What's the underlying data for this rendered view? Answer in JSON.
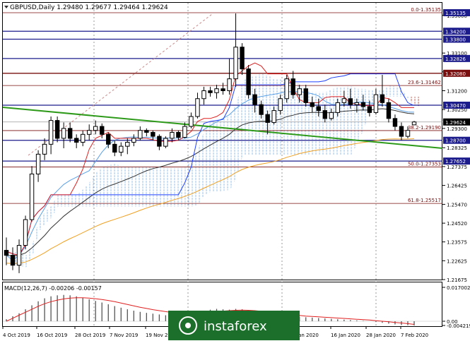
{
  "window": {
    "symbol_line": "GBPUSD,Daily  1.29480 1.29677 1.29464 1.29624"
  },
  "price_scale": {
    "ticks": [
      "1.35000",
      "1.33100",
      "1.32150",
      "1.31200",
      "1.30250",
      "1.29300",
      "1.28325",
      "1.27375",
      "1.26425",
      "1.25470",
      "1.24520",
      "1.23575",
      "1.22625",
      "1.21675"
    ]
  },
  "level_tags": [
    {
      "text": "1.35135",
      "price": 1.35135,
      "color": "#1c1c8c"
    },
    {
      "text": "1.34200",
      "price": 1.342,
      "color": "#1c1c8c"
    },
    {
      "text": "1.33800",
      "price": 1.338,
      "color": "#1c1c8c"
    },
    {
      "text": "1.32826",
      "price": 1.32826,
      "color": "#1c1c8c"
    },
    {
      "text": "1.32080",
      "price": 1.3208,
      "color": "#7a0f0f"
    },
    {
      "text": "1.30470",
      "price": 1.3047,
      "color": "#1c1c8c"
    },
    {
      "text": "1.29624",
      "price": 1.29624,
      "color": "#000000"
    },
    {
      "text": "1.28700",
      "price": 1.287,
      "color": "#1c1c8c"
    },
    {
      "text": "1.27652",
      "price": 1.27652,
      "color": "#1c1c8c"
    }
  ],
  "fib_labels": [
    {
      "text": "0.0-1.35135",
      "price": 1.35135
    },
    {
      "text": "23.6-1.31462",
      "price": 1.31462
    },
    {
      "text": "38.2-1.29190",
      "price": 1.2919
    },
    {
      "text": "50.0-1.27353",
      "price": 1.27353
    },
    {
      "text": "61.8-1.25517",
      "price": 1.25517
    }
  ],
  "macd": {
    "label": "MACD(12,26,7) -0.00206 -0.00157",
    "ticks": [
      "0.017002",
      "0.00",
      "-0.004219"
    ]
  },
  "time_axis": {
    "labels": [
      "4 Oct 2019",
      "16 Oct 2019",
      "28 Oct 2019",
      "7 Nov 2019",
      "19 Nov 20",
      "Jan 2020",
      "16 Jan 2020",
      "28 Jan 2020",
      "7 Feb 2020"
    ]
  },
  "watermark": "instaforex",
  "colors": {
    "resistance_blue": "#1c1c8c",
    "fib_red": "#7a0f0f",
    "trendline_green": "#2e9a1a",
    "tenkan_red": "#e02020",
    "kijun_blue": "#2040ff",
    "ma_black": "#333333",
    "ma_orange": "#f0a020",
    "ma_lightblue": "#5aa0e6",
    "watermark_green": "#1c6f2b"
  },
  "chart_data": {
    "type": "candlestick",
    "series_name": "GBPUSD",
    "timeframe": "Daily",
    "current_price": 1.29624,
    "ohlc_last": {
      "open": 1.2948,
      "high": 1.29677,
      "low": 1.29464,
      "close": 1.29624
    },
    "horizontal_levels": [
      1.342,
      1.338,
      1.32826,
      1.3208,
      1.3047,
      1.287,
      1.27652
    ],
    "fibonacci": [
      {
        "level": "0.0",
        "price": 1.35135
      },
      {
        "level": "23.6",
        "price": 1.31462
      },
      {
        "level": "38.2",
        "price": 1.2919
      },
      {
        "level": "50.0",
        "price": 1.27353
      },
      {
        "level": "61.8",
        "price": 1.25517
      }
    ],
    "candles": [
      {
        "o": 1.2315,
        "h": 1.238,
        "l": 1.224,
        "c": 1.229
      },
      {
        "o": 1.229,
        "h": 1.233,
        "l": 1.2215,
        "c": 1.224
      },
      {
        "o": 1.224,
        "h": 1.237,
        "l": 1.22,
        "c": 1.234
      },
      {
        "o": 1.234,
        "h": 1.249,
        "l": 1.232,
        "c": 1.247
      },
      {
        "o": 1.247,
        "h": 1.274,
        "l": 1.246,
        "c": 1.27
      },
      {
        "o": 1.27,
        "h": 1.282,
        "l": 1.266,
        "c": 1.28
      },
      {
        "o": 1.28,
        "h": 1.288,
        "l": 1.277,
        "c": 1.285
      },
      {
        "o": 1.285,
        "h": 1.299,
        "l": 1.28,
        "c": 1.297
      },
      {
        "o": 1.297,
        "h": 1.299,
        "l": 1.286,
        "c": 1.288
      },
      {
        "o": 1.288,
        "h": 1.296,
        "l": 1.283,
        "c": 1.293
      },
      {
        "o": 1.293,
        "h": 1.296,
        "l": 1.286,
        "c": 1.288
      },
      {
        "o": 1.288,
        "h": 1.29,
        "l": 1.283,
        "c": 1.286
      },
      {
        "o": 1.286,
        "h": 1.292,
        "l": 1.284,
        "c": 1.29
      },
      {
        "o": 1.29,
        "h": 1.295,
        "l": 1.287,
        "c": 1.292
      },
      {
        "o": 1.292,
        "h": 1.297,
        "l": 1.29,
        "c": 1.294
      },
      {
        "o": 1.294,
        "h": 1.2955,
        "l": 1.288,
        "c": 1.29
      },
      {
        "o": 1.29,
        "h": 1.291,
        "l": 1.283,
        "c": 1.285
      },
      {
        "o": 1.285,
        "h": 1.287,
        "l": 1.279,
        "c": 1.281
      },
      {
        "o": 1.281,
        "h": 1.286,
        "l": 1.279,
        "c": 1.284
      },
      {
        "o": 1.284,
        "h": 1.288,
        "l": 1.28,
        "c": 1.286
      },
      {
        "o": 1.286,
        "h": 1.29,
        "l": 1.284,
        "c": 1.288
      },
      {
        "o": 1.288,
        "h": 1.294,
        "l": 1.287,
        "c": 1.292
      },
      {
        "o": 1.292,
        "h": 1.293,
        "l": 1.289,
        "c": 1.291
      },
      {
        "o": 1.291,
        "h": 1.292,
        "l": 1.287,
        "c": 1.289
      },
      {
        "o": 1.289,
        "h": 1.29,
        "l": 1.282,
        "c": 1.284
      },
      {
        "o": 1.284,
        "h": 1.289,
        "l": 1.283,
        "c": 1.288
      },
      {
        "o": 1.288,
        "h": 1.293,
        "l": 1.286,
        "c": 1.291
      },
      {
        "o": 1.291,
        "h": 1.292,
        "l": 1.287,
        "c": 1.2885
      },
      {
        "o": 1.2885,
        "h": 1.296,
        "l": 1.288,
        "c": 1.294
      },
      {
        "o": 1.294,
        "h": 1.301,
        "l": 1.293,
        "c": 1.299
      },
      {
        "o": 1.299,
        "h": 1.311,
        "l": 1.298,
        "c": 1.308
      },
      {
        "o": 1.308,
        "h": 1.314,
        "l": 1.305,
        "c": 1.312
      },
      {
        "o": 1.312,
        "h": 1.314,
        "l": 1.309,
        "c": 1.311
      },
      {
        "o": 1.311,
        "h": 1.315,
        "l": 1.308,
        "c": 1.313
      },
      {
        "o": 1.313,
        "h": 1.316,
        "l": 1.31,
        "c": 1.312
      },
      {
        "o": 1.312,
        "h": 1.328,
        "l": 1.31,
        "c": 1.318
      },
      {
        "o": 1.318,
        "h": 1.351,
        "l": 1.314,
        "c": 1.334
      },
      {
        "o": 1.334,
        "h": 1.336,
        "l": 1.32,
        "c": 1.323
      },
      {
        "o": 1.323,
        "h": 1.325,
        "l": 1.308,
        "c": 1.31
      },
      {
        "o": 1.31,
        "h": 1.313,
        "l": 1.301,
        "c": 1.305
      },
      {
        "o": 1.305,
        "h": 1.307,
        "l": 1.298,
        "c": 1.3
      },
      {
        "o": 1.3,
        "h": 1.302,
        "l": 1.29,
        "c": 1.296
      },
      {
        "o": 1.296,
        "h": 1.304,
        "l": 1.295,
        "c": 1.302
      },
      {
        "o": 1.302,
        "h": 1.31,
        "l": 1.3,
        "c": 1.308
      },
      {
        "o": 1.308,
        "h": 1.32,
        "l": 1.306,
        "c": 1.318
      },
      {
        "o": 1.318,
        "h": 1.322,
        "l": 1.308,
        "c": 1.31
      },
      {
        "o": 1.31,
        "h": 1.315,
        "l": 1.306,
        "c": 1.313
      },
      {
        "o": 1.313,
        "h": 1.315,
        "l": 1.304,
        "c": 1.306
      },
      {
        "o": 1.306,
        "h": 1.309,
        "l": 1.301,
        "c": 1.304
      },
      {
        "o": 1.304,
        "h": 1.308,
        "l": 1.299,
        "c": 1.302
      },
      {
        "o": 1.302,
        "h": 1.305,
        "l": 1.296,
        "c": 1.298
      },
      {
        "o": 1.298,
        "h": 1.303,
        "l": 1.297,
        "c": 1.301
      },
      {
        "o": 1.301,
        "h": 1.308,
        "l": 1.299,
        "c": 1.306
      },
      {
        "o": 1.306,
        "h": 1.312,
        "l": 1.304,
        "c": 1.308
      },
      {
        "o": 1.308,
        "h": 1.313,
        "l": 1.303,
        "c": 1.305
      },
      {
        "o": 1.305,
        "h": 1.308,
        "l": 1.301,
        "c": 1.306
      },
      {
        "o": 1.306,
        "h": 1.31,
        "l": 1.302,
        "c": 1.304
      },
      {
        "o": 1.304,
        "h": 1.307,
        "l": 1.299,
        "c": 1.301
      },
      {
        "o": 1.301,
        "h": 1.313,
        "l": 1.3,
        "c": 1.31
      },
      {
        "o": 1.31,
        "h": 1.32,
        "l": 1.304,
        "c": 1.306
      },
      {
        "o": 1.306,
        "h": 1.308,
        "l": 1.296,
        "c": 1.298
      },
      {
        "o": 1.298,
        "h": 1.3,
        "l": 1.292,
        "c": 1.294
      },
      {
        "o": 1.294,
        "h": 1.296,
        "l": 1.287,
        "c": 1.289
      },
      {
        "o": 1.289,
        "h": 1.294,
        "l": 1.288,
        "c": 1.292
      },
      {
        "o": 1.2948,
        "h": 1.29677,
        "l": 1.29464,
        "c": 1.29624
      }
    ],
    "macd_histogram": [
      0.001,
      0.0025,
      0.004,
      0.006,
      0.008,
      0.01,
      0.0115,
      0.0125,
      0.013,
      0.0132,
      0.013,
      0.0125,
      0.0118,
      0.011,
      0.0102,
      0.0094,
      0.0085,
      0.0076,
      0.0068,
      0.006,
      0.0053,
      0.0047,
      0.0042,
      0.0038,
      0.0034,
      0.003,
      0.0027,
      0.0026,
      0.003,
      0.0035,
      0.0042,
      0.005,
      0.0058,
      0.0062,
      0.006,
      0.0058,
      0.0062,
      0.006,
      0.0052,
      0.0045,
      0.0038,
      0.0032,
      0.0028,
      0.0026,
      0.0026,
      0.0024,
      0.0022,
      0.002,
      0.0018,
      0.0016,
      0.0014,
      0.0012,
      0.001,
      0.0008,
      0.0006,
      0.0004,
      0.0002,
      0.0,
      -0.0004,
      -0.0008,
      -0.0012,
      -0.0016,
      -0.0019,
      -0.002,
      -0.0021
    ],
    "macd_signal": [
      0.0,
      0.0015,
      0.003,
      0.0045,
      0.006,
      0.0075,
      0.0088,
      0.0098,
      0.0106,
      0.0112,
      0.0116,
      0.0118,
      0.0118,
      0.0116,
      0.0113,
      0.0109,
      0.0104,
      0.0098,
      0.0091,
      0.0084,
      0.0077,
      0.007,
      0.0064,
      0.0058,
      0.0053,
      0.0048,
      0.0044,
      0.0041,
      0.0039,
      0.0039,
      0.004,
      0.0042,
      0.0045,
      0.0048,
      0.0051,
      0.0053,
      0.0055,
      0.0056,
      0.0055,
      0.0053,
      0.005,
      0.0046,
      0.0042,
      0.0038,
      0.0035,
      0.0032,
      0.0029,
      0.0026,
      0.0024,
      0.0022,
      0.002,
      0.0018,
      0.0016,
      0.0014,
      0.0012,
      0.001,
      0.0008,
      0.0006,
      0.0003,
      0.0,
      -0.0003,
      -0.0006,
      -0.0009,
      -0.0012,
      -0.0016
    ]
  }
}
